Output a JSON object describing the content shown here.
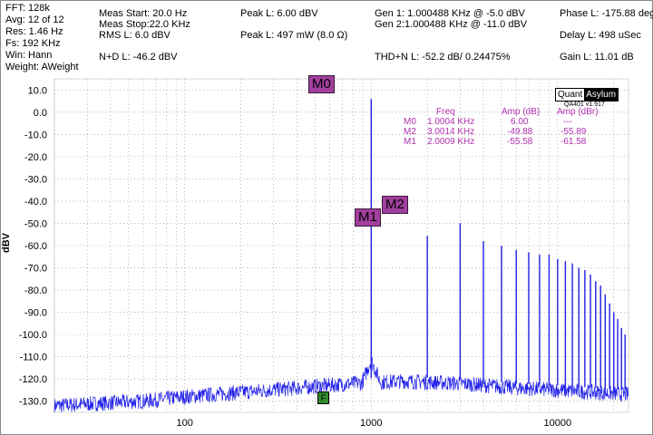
{
  "stats": {
    "fft": "FFT: 128k",
    "avg": "Avg: 12 of 12",
    "res": "Res: 1.46 Hz",
    "fs": "Fs: 192 KHz",
    "win": "Win: Hann",
    "weight": "Weight: AWeight",
    "meas_start": "Meas Start: 20.0 Hz",
    "meas_stop": "Meas Stop:22.0 KHz",
    "rms_l": "RMS L: 6.0 dBV",
    "nd_l": "N+D L: -46.2 dBV",
    "peak_l": "Peak L: 6.00 dBV",
    "peak_l_power": "Peak L: 497 mW (8.0 Ω)",
    "gen1": "Gen 1: 1.000488 KHz @ -5.0  dBV",
    "gen2": "Gen 2:1.000488 KHz @ -11.0  dBV",
    "thdn_l": "THD+N L: -52.2 dB/ 0.24475%",
    "phase_l": "Phase L: -175.88 deg",
    "delay_l": "Delay L: 498 uSec",
    "gain_l": "Gain L: 11.01 dB"
  },
  "logo": {
    "part1": "Quant",
    "part2": "Asylum",
    "version": "QA401 v1.917"
  },
  "markers_table": {
    "headers": [
      "Freq",
      "Amp (dB)",
      "Amp (dBr)"
    ],
    "rows": [
      {
        "name": "M0",
        "freq": "1.0004 KHz",
        "amp_db": "6.00",
        "amp_dbr": "---"
      },
      {
        "name": "M2",
        "freq": "3.0014 KHz",
        "amp_db": "-49.88",
        "amp_dbr": "-55.89"
      },
      {
        "name": "M1",
        "freq": "2.0009 KHz",
        "amp_db": "-55.58",
        "amp_dbr": "-61.58"
      }
    ]
  },
  "marker_labels": {
    "m0": "M0",
    "m1": "M1",
    "m2": "M2",
    "f": "F"
  },
  "colors": {
    "trace": "#1f1fe8",
    "marker": "#a23f9e",
    "marker_text": "#b030b0",
    "grid": "#8c8c8c"
  },
  "chart_data": {
    "type": "line",
    "xlabel": "",
    "ylabel": "dBV",
    "x_scale": "log",
    "xlim": [
      20,
      24000
    ],
    "ylim": [
      -135,
      15
    ],
    "x_ticks": [
      "100",
      "1000",
      "10000"
    ],
    "y_ticks": [
      "10.0",
      "0.0",
      "-10.0",
      "-20.0",
      "-30.0",
      "-40.0",
      "-50.0",
      "-60.0",
      "-70.0",
      "-80.0",
      "-90.0",
      "-100.0",
      "-110.0",
      "-120.0",
      "-130.0"
    ],
    "grid": true,
    "series": [
      {
        "peaks": [
          [
            1000,
            6
          ],
          [
            2000,
            -55.6
          ],
          [
            3000,
            -49.9
          ],
          [
            4000,
            -58
          ],
          [
            5000,
            -60
          ],
          [
            6000,
            -62
          ],
          [
            7000,
            -63
          ],
          [
            8000,
            -64
          ],
          [
            9000,
            -64
          ],
          [
            10000,
            -66
          ],
          [
            11000,
            -67
          ],
          [
            12000,
            -68
          ],
          [
            13000,
            -70
          ],
          [
            14000,
            -71
          ],
          [
            15000,
            -73
          ],
          [
            16000,
            -76
          ],
          [
            17000,
            -78
          ],
          [
            18000,
            -82
          ],
          [
            19000,
            -86
          ],
          [
            20000,
            -90
          ],
          [
            21000,
            -93
          ],
          [
            22000,
            -97
          ],
          [
            23000,
            -100
          ]
        ],
        "noise_floor": [
          [
            20,
            -132
          ],
          [
            60,
            -130
          ],
          [
            100,
            -128
          ],
          [
            200,
            -126
          ],
          [
            400,
            -124
          ],
          [
            800,
            -122
          ],
          [
            1500,
            -121
          ],
          [
            3000,
            -122
          ],
          [
            6000,
            -124
          ],
          [
            10000,
            -125
          ],
          [
            16000,
            -126
          ],
          [
            24000,
            -127
          ]
        ]
      }
    ]
  }
}
